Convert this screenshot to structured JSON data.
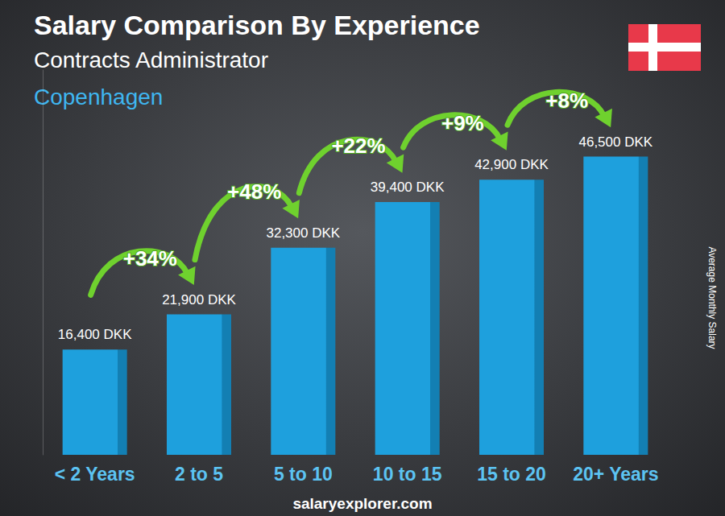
{
  "chart_data": {
    "type": "bar",
    "title": "Salary Comparison By Experience",
    "subtitle": "Contracts Administrator",
    "location": "Copenhagen",
    "ylabel": "Average Monthly Salary",
    "source": "salaryexplorer.com",
    "categories": [
      "< 2 Years",
      "2 to 5",
      "5 to 10",
      "10 to 15",
      "15 to 20",
      "20+ Years"
    ],
    "values": [
      16400,
      21900,
      32300,
      39400,
      42900,
      46500
    ],
    "value_labels": [
      "16,400 DKK",
      "21,900 DKK",
      "32,300 DKK",
      "39,400 DKK",
      "42,900 DKK",
      "46,500 DKK"
    ],
    "data_labels": true,
    "annotations": [
      "+34%",
      "+48%",
      "+22%",
      "+9%",
      "+8%"
    ],
    "color": "#1ea0dd",
    "ylim": [
      0,
      60000
    ],
    "yticks": [
      0,
      60000
    ],
    "grid": false,
    "tick_labels": "x"
  }
}
